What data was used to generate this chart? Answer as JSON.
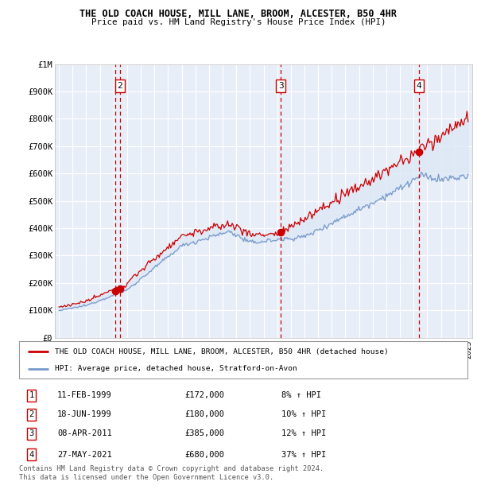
{
  "title1": "THE OLD COACH HOUSE, MILL LANE, BROOM, ALCESTER, B50 4HR",
  "title2": "Price paid vs. HM Land Registry's House Price Index (HPI)",
  "ylabel_ticks": [
    "£0",
    "£100K",
    "£200K",
    "£300K",
    "£400K",
    "£500K",
    "£600K",
    "£700K",
    "£800K",
    "£900K",
    "£1M"
  ],
  "ytick_vals": [
    0,
    100000,
    200000,
    300000,
    400000,
    500000,
    600000,
    700000,
    800000,
    900000,
    1000000
  ],
  "xlim": [
    1994.7,
    2025.3
  ],
  "ylim": [
    0,
    1000000
  ],
  "sale_points": [
    {
      "num": 1,
      "year": 1999.11,
      "price": 172000,
      "date": "11-FEB-1999",
      "pct": "8%"
    },
    {
      "num": 2,
      "year": 1999.46,
      "price": 180000,
      "date": "18-JUN-1999",
      "pct": "10%"
    },
    {
      "num": 3,
      "year": 2011.27,
      "price": 385000,
      "date": "08-APR-2011",
      "pct": "12%"
    },
    {
      "num": 4,
      "year": 2021.41,
      "price": 680000,
      "date": "27-MAY-2021",
      "pct": "37%"
    }
  ],
  "legend_line1": "THE OLD COACH HOUSE, MILL LANE, BROOM, ALCESTER, B50 4HR (detached house)",
  "legend_line2": "HPI: Average price, detached house, Stratford-on-Avon",
  "footer": "Contains HM Land Registry data © Crown copyright and database right 2024.\nThis data is licensed under the Open Government Licence v3.0.",
  "red_color": "#cc0000",
  "blue_color": "#7799cc",
  "fill_color": "#dde8f5",
  "bg_color": "#e8eef8",
  "grid_color": "#ffffff"
}
